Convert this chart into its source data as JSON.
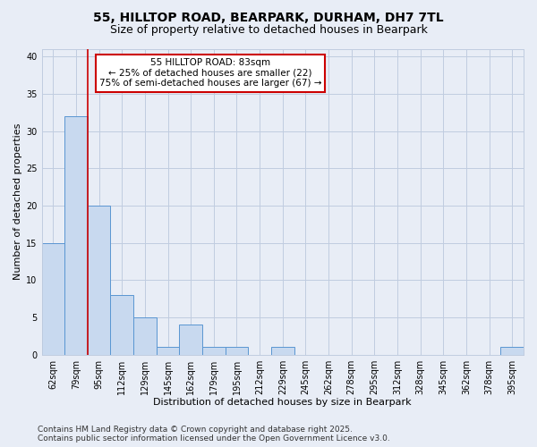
{
  "title_line1": "55, HILLTOP ROAD, BEARPARK, DURHAM, DH7 7TL",
  "title_line2": "Size of property relative to detached houses in Bearpark",
  "xlabel": "Distribution of detached houses by size in Bearpark",
  "ylabel": "Number of detached properties",
  "categories": [
    "62sqm",
    "79sqm",
    "95sqm",
    "112sqm",
    "129sqm",
    "145sqm",
    "162sqm",
    "179sqm",
    "195sqm",
    "212sqm",
    "229sqm",
    "245sqm",
    "262sqm",
    "278sqm",
    "295sqm",
    "312sqm",
    "328sqm",
    "345sqm",
    "362sqm",
    "378sqm",
    "395sqm"
  ],
  "values": [
    15,
    32,
    20,
    8,
    5,
    1,
    4,
    1,
    1,
    0,
    1,
    0,
    0,
    0,
    0,
    0,
    0,
    0,
    0,
    0,
    1
  ],
  "bar_color": "#c8d9ef",
  "bar_edge_color": "#5a96d2",
  "bar_width": 1.0,
  "ylim": [
    0,
    41
  ],
  "yticks": [
    0,
    5,
    10,
    15,
    20,
    25,
    30,
    35,
    40
  ],
  "annotation_box_text_line1": "55 HILLTOP ROAD: 83sqm",
  "annotation_box_text_line2": "← 25% of detached houses are smaller (22)",
  "annotation_box_text_line3": "75% of semi-detached houses are larger (67) →",
  "vline_color": "#cc0000",
  "vline_x": 1.5,
  "annotation_box_color": "#ffffff",
  "annotation_box_edge_color": "#cc0000",
  "grid_color": "#c0cce0",
  "background_color": "#e8edf6",
  "footer_line1": "Contains HM Land Registry data © Crown copyright and database right 2025.",
  "footer_line2": "Contains public sector information licensed under the Open Government Licence v3.0.",
  "title_fontsize": 10,
  "subtitle_fontsize": 9,
  "axis_label_fontsize": 8,
  "tick_fontsize": 7,
  "annotation_fontsize": 7.5,
  "footer_fontsize": 6.5
}
